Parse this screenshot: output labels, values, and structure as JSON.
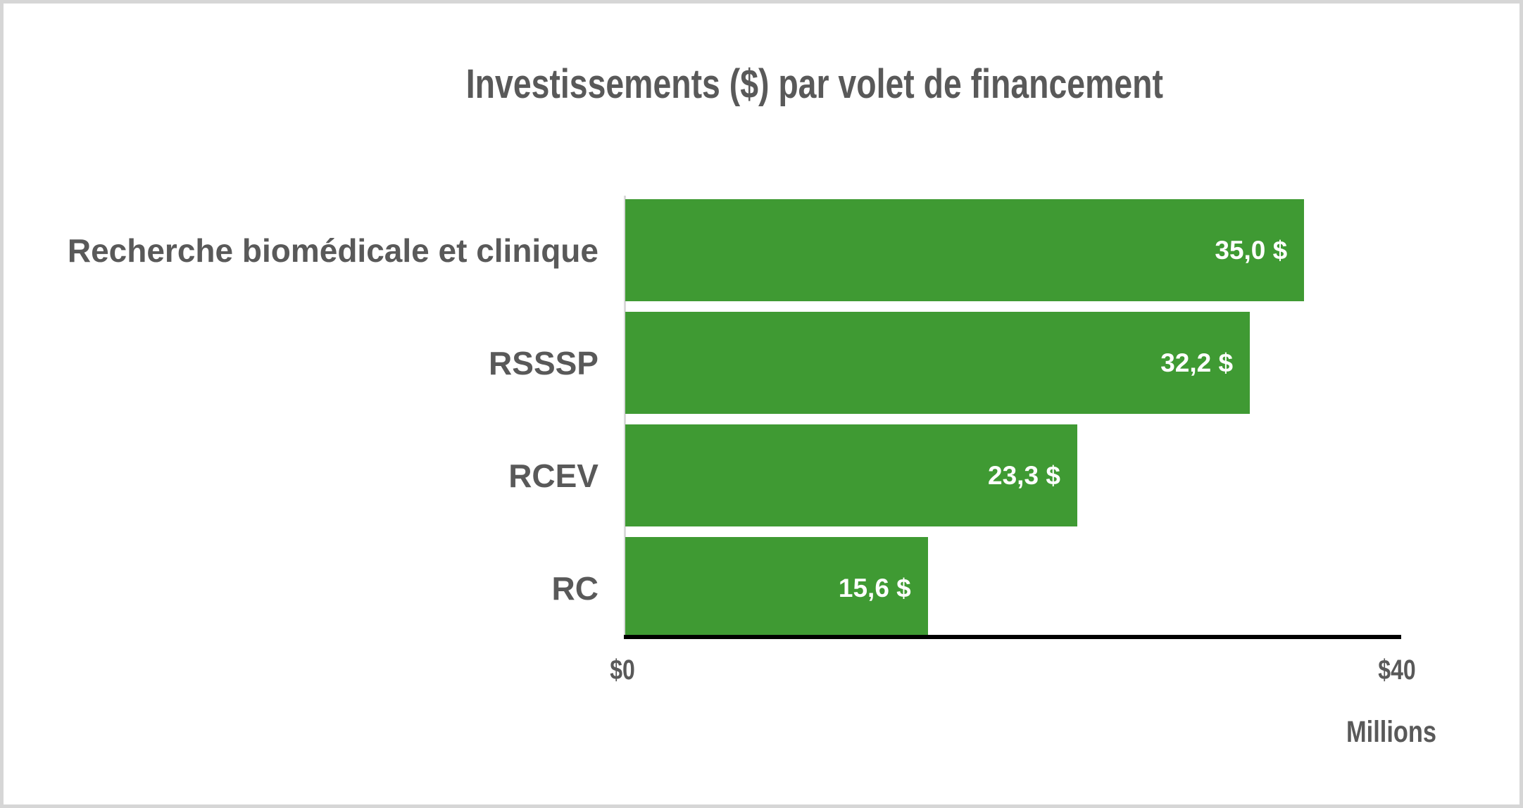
{
  "chart_data": {
    "type": "bar",
    "orientation": "horizontal",
    "title": "Investissements ($) par volet de financement",
    "categories": [
      "Recherche biomédicale et clinique",
      "RSSSP",
      "RCEV",
      "RC"
    ],
    "values": [
      35.0,
      32.2,
      23.3,
      15.6
    ],
    "value_labels": [
      "35,0 $",
      "32,2 $",
      "23,3 $",
      "15,6 $"
    ],
    "xlim": [
      0,
      40
    ],
    "x_ticks": [
      "$0",
      "$40"
    ],
    "axis_display_unit": "Millions",
    "legend": "none",
    "grid": "off",
    "colors": {
      "bar": "#3F9A33",
      "text": "#595959",
      "value_text": "#FFFFFF",
      "x_axis_line": "#000000",
      "y_axis_line": "#D9D9D9",
      "frame_border": "#D6D6D6",
      "background": "#FFFFFF"
    }
  }
}
